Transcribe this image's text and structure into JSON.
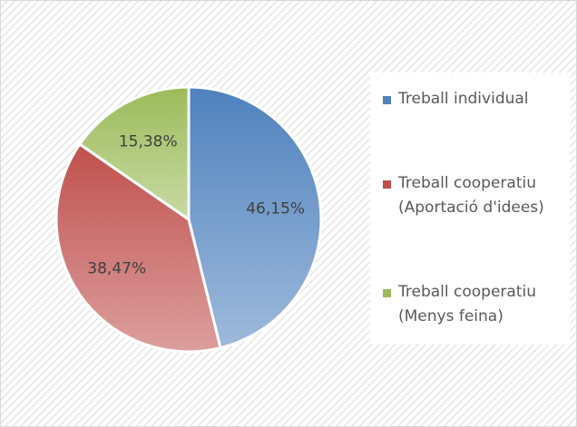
{
  "chart_data": {
    "type": "pie",
    "categories": [
      "Treball individual",
      "Treball cooperatiu (Aportació d'idees)",
      "Treball cooperatiu (Menys feina)"
    ],
    "values": [
      46.15,
      38.47,
      15.38
    ],
    "value_labels": [
      "46,15%",
      "38,47%",
      "15,38%"
    ],
    "colors": [
      "#4f81bd",
      "#c0504d",
      "#9bbb59"
    ],
    "legend": "right"
  }
}
